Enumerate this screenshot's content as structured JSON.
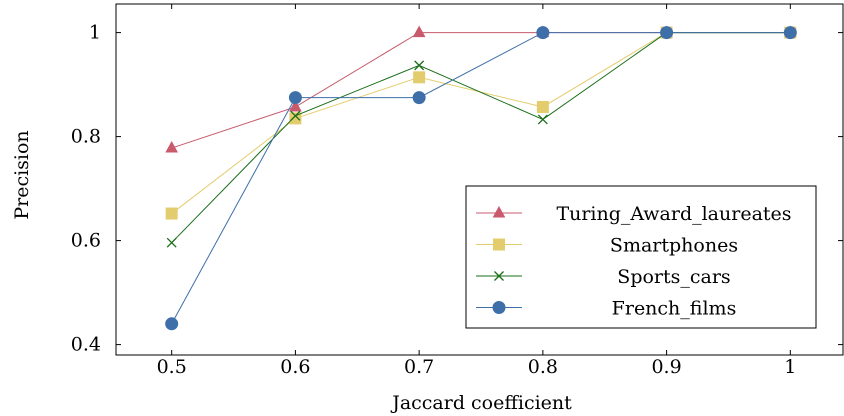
{
  "chart_data": {
    "type": "line",
    "title": "",
    "xlabel": "Jaccard coefficient",
    "ylabel": "Precision",
    "x": [
      0.5,
      0.6,
      0.7,
      0.8,
      0.9,
      1.0
    ],
    "x_ticks": [
      "0.5",
      "0.6",
      "0.7",
      "0.8",
      "0.9",
      "1"
    ],
    "y_ticks": [
      "0.4",
      "0.6",
      "0.8",
      "1"
    ],
    "xlim": [
      0.455,
      1.045
    ],
    "ylim": [
      0.38,
      1.055
    ],
    "grid": false,
    "legend_position": "bottom-right",
    "series": [
      {
        "name": "Turing_Award_laureates",
        "color": "#c85a6c",
        "marker": "triangle",
        "values": [
          0.778,
          0.857,
          1.0,
          1.0,
          1.0,
          1.0
        ]
      },
      {
        "name": "Smartphones",
        "color": "#e3cc6e",
        "marker": "square",
        "values": [
          0.652,
          0.835,
          0.914,
          0.857,
          1.0,
          1.0
        ]
      },
      {
        "name": "Sports_cars",
        "color": "#1a6e1a",
        "marker": "cross",
        "values": [
          0.596,
          0.84,
          0.937,
          0.833,
          1.0,
          1.0
        ]
      },
      {
        "name": "French_films",
        "color": "#3f6fa8",
        "marker": "circle",
        "values": [
          0.44,
          0.875,
          0.875,
          1.0,
          1.0,
          1.0
        ]
      }
    ]
  }
}
